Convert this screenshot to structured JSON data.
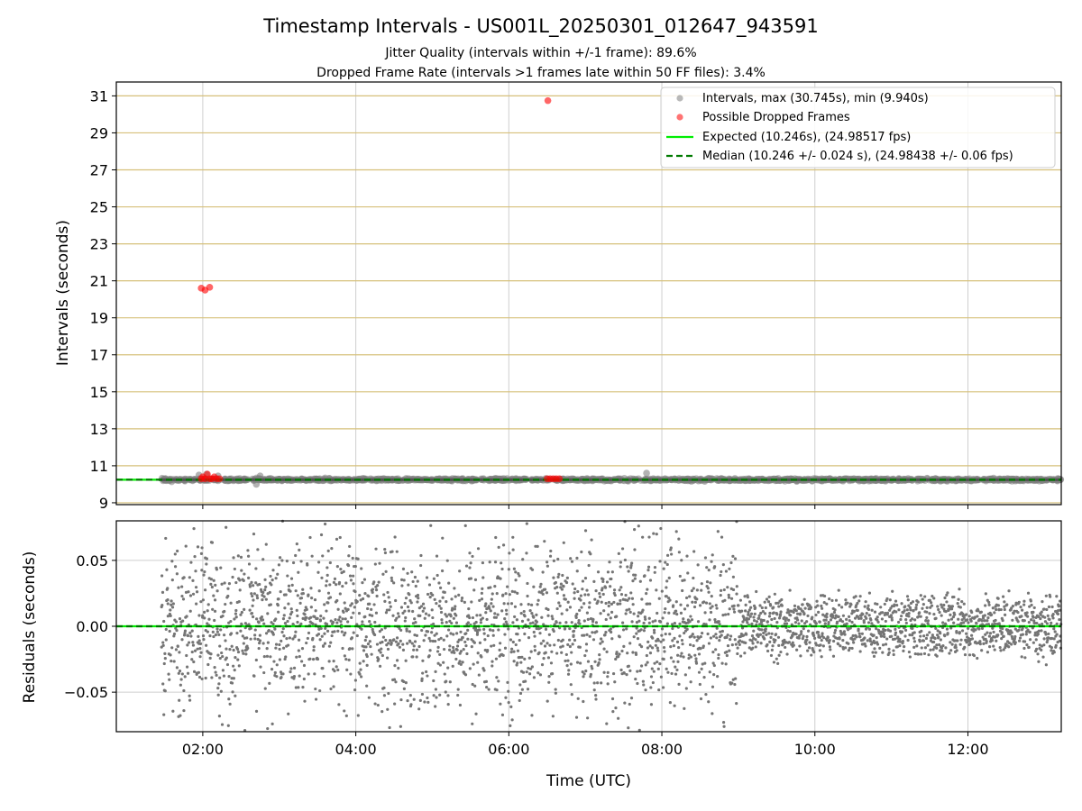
{
  "chart_data": [
    {
      "type": "scatter",
      "title": "Timestamp Intervals - US001L_20250301_012647_943591",
      "subtitle_lines": [
        "Jitter Quality (intervals within +/-1 frame): 89.6%",
        "Dropped Frame Rate (intervals >1 frames late within 50 FF files): 3.4%"
      ],
      "xlabel": "",
      "ylabel": "Intervals (seconds)",
      "xlim_hours": [
        0.87,
        13.22
      ],
      "ylim": [
        8.9,
        31.75
      ],
      "yticks": [
        9,
        11,
        13,
        15,
        17,
        19,
        21,
        23,
        25,
        27,
        29,
        31
      ],
      "ytick_labels": [
        "9",
        "11",
        "13",
        "15",
        "17",
        "19",
        "21",
        "23",
        "25",
        "27",
        "29",
        "31"
      ],
      "horizontal_grid_color": "#d6c07a",
      "vertical_grid": true,
      "legend_position": "top-right",
      "series": [
        {
          "name": "Intervals, max (30.745s), min (9.940s)",
          "kind": "scatter",
          "color": "#808080",
          "x_range_hours": [
            1.46,
            13.22
          ],
          "y_center": 10.246,
          "notable_points": [
            {
              "x": 1.95,
              "y": 10.5
            },
            {
              "x": 2.05,
              "y": 10.55
            },
            {
              "x": 2.2,
              "y": 10.45
            },
            {
              "x": 2.75,
              "y": 10.45
            },
            {
              "x": 2.7,
              "y": 10.0
            },
            {
              "x": 7.8,
              "y": 10.6
            }
          ]
        },
        {
          "name": "Possible Dropped Frames",
          "kind": "scatter",
          "color": "#ff0000",
          "points": [
            {
              "x": 1.98,
              "y": 20.6
            },
            {
              "x": 2.03,
              "y": 20.5
            },
            {
              "x": 2.09,
              "y": 20.65
            },
            {
              "x": 6.51,
              "y": 30.745
            },
            {
              "x": 1.98,
              "y": 10.3
            },
            {
              "x": 2.0,
              "y": 10.4
            },
            {
              "x": 2.03,
              "y": 10.3
            },
            {
              "x": 2.06,
              "y": 10.55
            },
            {
              "x": 2.09,
              "y": 10.3
            },
            {
              "x": 2.12,
              "y": 10.3
            },
            {
              "x": 2.15,
              "y": 10.4
            },
            {
              "x": 2.18,
              "y": 10.3
            },
            {
              "x": 2.22,
              "y": 10.3
            },
            {
              "x": 6.5,
              "y": 10.3
            },
            {
              "x": 6.54,
              "y": 10.3
            },
            {
              "x": 6.58,
              "y": 10.3
            },
            {
              "x": 6.62,
              "y": 10.3
            },
            {
              "x": 6.66,
              "y": 10.3
            }
          ]
        },
        {
          "name": "Expected (10.246s), (24.98517 fps)",
          "kind": "hline",
          "color": "#00ee00",
          "y": 10.246
        },
        {
          "name": "Median (10.246 +/- 0.024 s), (24.98438 +/- 0.06 fps)",
          "kind": "hline-dashed",
          "color": "#007a00",
          "y": 10.246
        }
      ]
    },
    {
      "type": "scatter",
      "xlabel": "Time (UTC)",
      "ylabel": "Residuals (seconds)",
      "xlim_hours": [
        0.87,
        13.22
      ],
      "ylim": [
        -0.08,
        0.08
      ],
      "yticks": [
        0.05,
        0.0,
        -0.05
      ],
      "ytick_labels": [
        "0.05",
        "0.00",
        "−0.05"
      ],
      "xticks_hours": [
        2,
        4,
        6,
        8,
        10,
        12
      ],
      "xtick_labels": [
        "02:00",
        "04:00",
        "06:00",
        "08:00",
        "10:00",
        "12:00"
      ],
      "grid": true,
      "series": [
        {
          "kind": "scatter",
          "color": "#757575",
          "x_range_hours": [
            1.46,
            13.22
          ],
          "approx_point_count": 3200,
          "spread_early": 0.04,
          "spread_late": 0.02
        },
        {
          "kind": "hline",
          "color": "#00ee00",
          "y": 0.0
        },
        {
          "kind": "hline-dashed",
          "color": "#007a00",
          "y": 0.0
        }
      ]
    }
  ]
}
